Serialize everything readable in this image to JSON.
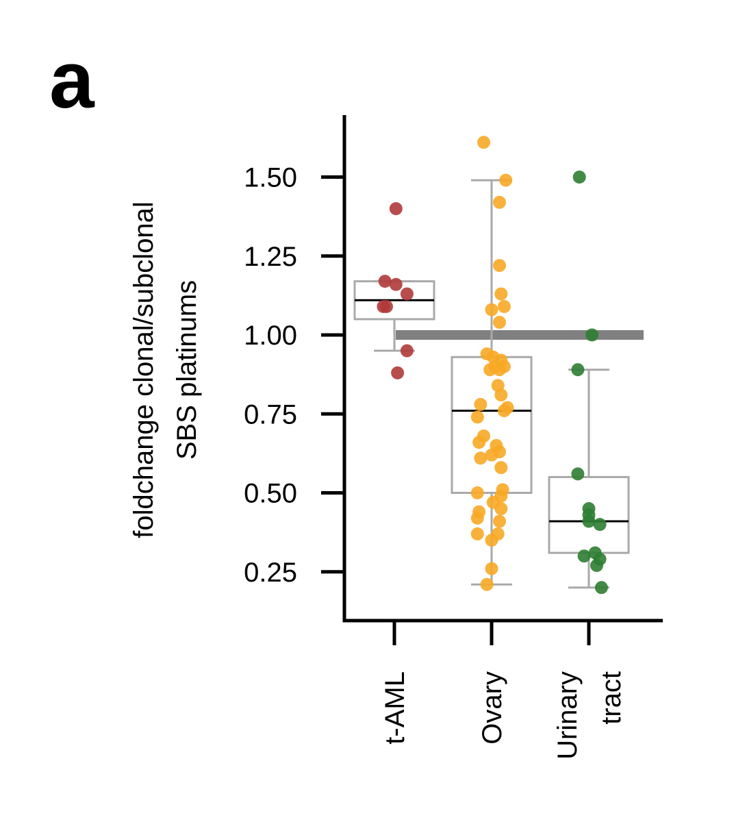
{
  "panel_label": "a",
  "chart_data": {
    "type": "box",
    "title": "",
    "ylabel_lines": [
      "foldchange clonal/subclonal",
      "SBS platinums"
    ],
    "xlabel": "",
    "ylim": [
      0.1,
      1.7
    ],
    "yticks": [
      0.25,
      0.5,
      0.75,
      1.0,
      1.25,
      1.5
    ],
    "ytick_labels": [
      "0.25",
      "0.50",
      "0.75",
      "1.00",
      "1.25",
      "1.50"
    ],
    "reference_line": {
      "y": 1.0,
      "color": "#808080"
    },
    "categories": [
      {
        "label_lines": [
          "t-AML"
        ]
      },
      {
        "label_lines": [
          "Ovary"
        ]
      },
      {
        "label_lines": [
          "Urinary",
          "tract"
        ]
      }
    ],
    "series": [
      {
        "color": "#b03a3a",
        "box": {
          "q1": 1.05,
          "median": 1.11,
          "q3": 1.17,
          "whisker_low": 0.95,
          "whisker_high": 1.17
        },
        "points": [
          [
            0.02,
            1.4
          ],
          [
            -0.12,
            1.17
          ],
          [
            0.02,
            1.16
          ],
          [
            -0.1,
            1.09
          ],
          [
            -0.14,
            1.09
          ],
          [
            0.16,
            1.13
          ],
          [
            0.16,
            0.95
          ],
          [
            0.04,
            0.88
          ]
        ]
      },
      {
        "color": "#f7a825",
        "box": {
          "q1": 0.5,
          "median": 0.76,
          "q3": 0.93,
          "whisker_low": 0.21,
          "whisker_high": 1.49
        },
        "points": [
          [
            -0.1,
            1.61
          ],
          [
            0.18,
            1.49
          ],
          [
            0.1,
            1.42
          ],
          [
            0.1,
            1.22
          ],
          [
            0.12,
            1.13
          ],
          [
            0.16,
            1.09
          ],
          [
            0.0,
            1.08
          ],
          [
            0.1,
            1.04
          ],
          [
            -0.06,
            0.94
          ],
          [
            0.02,
            0.93
          ],
          [
            0.12,
            0.92
          ],
          [
            0.04,
            0.9
          ],
          [
            -0.02,
            0.89
          ],
          [
            0.1,
            0.89
          ],
          [
            0.16,
            0.9
          ],
          [
            0.08,
            0.84
          ],
          [
            0.12,
            0.81
          ],
          [
            -0.14,
            0.78
          ],
          [
            0.2,
            0.77
          ],
          [
            0.16,
            0.76
          ],
          [
            -0.18,
            0.74
          ],
          [
            -0.1,
            0.68
          ],
          [
            -0.16,
            0.66
          ],
          [
            0.06,
            0.65
          ],
          [
            0.0,
            0.62
          ],
          [
            0.1,
            0.63
          ],
          [
            -0.14,
            0.61
          ],
          [
            0.12,
            0.58
          ],
          [
            0.14,
            0.51
          ],
          [
            -0.18,
            0.5
          ],
          [
            0.12,
            0.49
          ],
          [
            0.02,
            0.47
          ],
          [
            0.12,
            0.45
          ],
          [
            -0.16,
            0.44
          ],
          [
            -0.18,
            0.42
          ],
          [
            0.1,
            0.41
          ],
          [
            -0.18,
            0.37
          ],
          [
            0.08,
            0.37
          ],
          [
            0.0,
            0.35
          ],
          [
            0.0,
            0.26
          ],
          [
            -0.06,
            0.21
          ]
        ]
      },
      {
        "color": "#2e7d32",
        "box": {
          "q1": 0.31,
          "median": 0.41,
          "q3": 0.55,
          "whisker_low": 0.2,
          "whisker_high": 0.89
        },
        "points": [
          [
            -0.12,
            1.5
          ],
          [
            0.04,
            1.0
          ],
          [
            -0.14,
            0.89
          ],
          [
            -0.14,
            0.56
          ],
          [
            0.0,
            0.45
          ],
          [
            0.0,
            0.43
          ],
          [
            0.0,
            0.41
          ],
          [
            0.14,
            0.4
          ],
          [
            -0.06,
            0.3
          ],
          [
            0.08,
            0.31
          ],
          [
            0.14,
            0.29
          ],
          [
            0.1,
            0.27
          ],
          [
            0.16,
            0.2
          ]
        ]
      }
    ]
  }
}
